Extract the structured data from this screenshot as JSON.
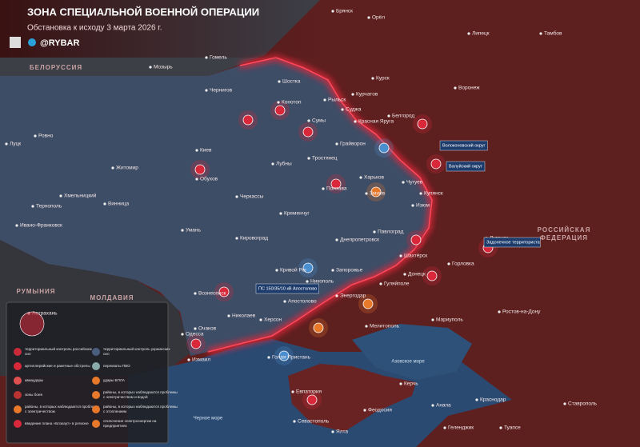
{
  "header": {
    "title": "ЗОНА СПЕЦИАЛЬНОЙ ВОЕННОЙ ОПЕРАЦИИ",
    "subtitle": "Обстановка к исходу 3 марта 2026 г.",
    "brand": "@RYBAR"
  },
  "countries": [
    "БЕЛОРУССИЯ",
    "РУМЫНИЯ",
    "МОЛДАВИЯ",
    "РОССИЙСКАЯ ФЕДЕРАЦИЯ"
  ],
  "seas": [
    "Азовское море",
    "Черное море"
  ],
  "cities": [
    "Брянск",
    "Орёл",
    "Липецк",
    "Тамбов",
    "Гомель",
    "Мозырь",
    "Курск",
    "Курчатов",
    "Воронеж",
    "Шостка",
    "Конотоп",
    "Рыльск",
    "Суджа",
    "Чернигов",
    "Сумы",
    "Красная Яруга",
    "Белгород",
    "Грайворон",
    "Тростянец",
    "Харьков",
    "Киев",
    "Житомир",
    "Ровно",
    "Луцк",
    "Обухов",
    "Лубны",
    "Полтава",
    "Змиев",
    "Чугуев",
    "Купянск",
    "Изюм",
    "Кременчуг",
    "Черкассы",
    "Винница",
    "Хмельницкий",
    "Тернополь",
    "Ивано-Франковск",
    "Умань",
    "Кировоград",
    "Днепропетровск",
    "Павлоград",
    "Луганск",
    "Горловка",
    "Донецк",
    "Запорожье",
    "Кривой Рог",
    "Никополь",
    "Гуляйполе",
    "Энергодар",
    "Вознесенск",
    "Николаев",
    "Херсон",
    "Очаков",
    "Одесса",
    "Измаил",
    "Мелитополь",
    "Мариуполь",
    "Ростов-на-Дону",
    "Голая Пристань",
    "Евпатория",
    "Керчь",
    "Севастополь",
    "Феодосия",
    "Ялта",
    "Анапа",
    "Краснодар",
    "Ставрополь",
    "Геленджик",
    "Туапсе",
    "Шахтёрск",
    "Апостолово",
    "Астрахань"
  ],
  "callouts": [
    "Волоконовский округ",
    "Валуйский округ",
    "Задонечное территориста",
    "ПС 150/35/10 кВ Апостолово"
  ],
  "legend": {
    "items": [
      "территориальный контроль российских сил",
      "территориальный контроль украинских сил",
      "артиллерийские и ракетные обстрелы",
      "перехваты ПВО",
      "авиаудары",
      "удары БПЛА",
      "зоны боев",
      "районы, в которых наблюдаются проблемы с электричеством и водой",
      "районы, в которых наблюдаются проблемы с электричеством",
      "районы, в которых наблюдаются проблемы с отоплением",
      "введение плана «Блэкаут» в регионе",
      "отключение электроэнергии на предприятиях"
    ]
  }
}
